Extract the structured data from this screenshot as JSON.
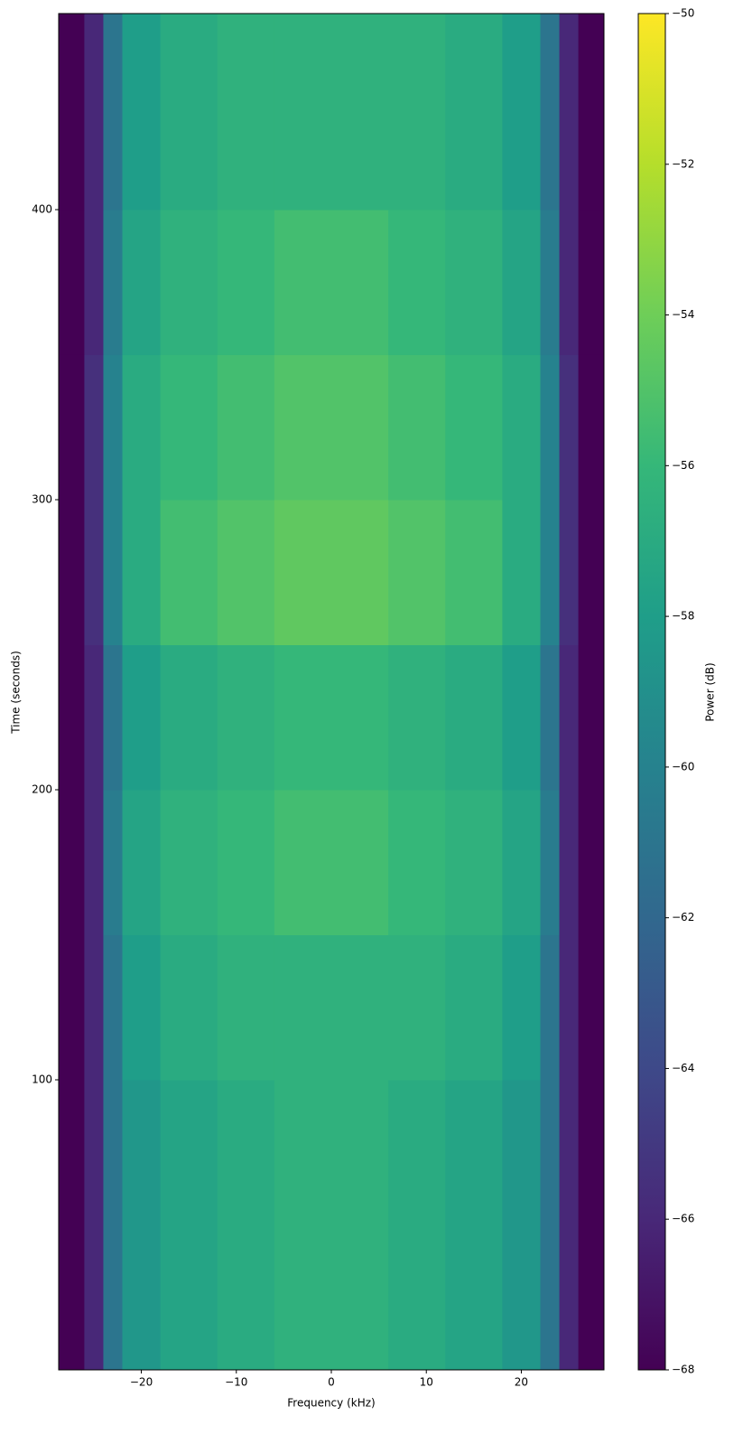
{
  "chart_data": {
    "type": "heatmap",
    "xlabel": "Frequency (kHz)",
    "ylabel": "Time (seconds)",
    "colorbar_label": "Power (dB)",
    "xbins": [
      -28.7,
      -26,
      -24,
      -22,
      -18,
      -12,
      -6,
      0,
      6,
      12,
      18,
      22,
      24,
      26,
      28.7
    ],
    "ybins": [
      0,
      50,
      100,
      150,
      200,
      250,
      300,
      350,
      400,
      467.6
    ],
    "z": [
      [
        -68,
        -66,
        -61,
        -58.5,
        -57.5,
        -57,
        -56.5,
        -56.5,
        -57,
        -57.5,
        -58.5,
        -61,
        -66,
        -68
      ],
      [
        -68,
        -66,
        -61,
        -58.5,
        -57.5,
        -57,
        -56.5,
        -56.5,
        -57,
        -57.5,
        -58.5,
        -61,
        -66,
        -68
      ],
      [
        -68,
        -66,
        -61,
        -58,
        -57,
        -56.5,
        -56.5,
        -56.5,
        -56.5,
        -57,
        -58,
        -61,
        -66,
        -68
      ],
      [
        -68,
        -66,
        -60.5,
        -57.5,
        -56.5,
        -56,
        -55.5,
        -55.5,
        -56,
        -56.5,
        -57.5,
        -60.5,
        -66,
        -68
      ],
      [
        -68,
        -66,
        -61,
        -58,
        -57,
        -56.5,
        -56,
        -56,
        -56.5,
        -57,
        -58,
        -61,
        -66,
        -68
      ],
      [
        -68,
        -65.5,
        -60,
        -57,
        -55.5,
        -55,
        -54.5,
        -54.5,
        -55,
        -55.5,
        -57,
        -60,
        -65.5,
        -68
      ],
      [
        -68,
        -65.5,
        -60,
        -57,
        -56,
        -55.5,
        -55,
        -55,
        -55.5,
        -56,
        -57,
        -60,
        -65.5,
        -68
      ],
      [
        -68,
        -66,
        -60.5,
        -57.5,
        -56.5,
        -56,
        -55.5,
        -55.5,
        -56,
        -56.5,
        -57.5,
        -60.5,
        -66,
        -68
      ],
      [
        -68,
        -66,
        -61,
        -58,
        -57,
        -56.5,
        -56.5,
        -56.5,
        -56.5,
        -57,
        -58,
        -61,
        -66,
        -68
      ]
    ],
    "xlim": [
      -28.7,
      28.7
    ],
    "ylim": [
      0,
      467.6
    ],
    "zlim": [
      -68,
      -50
    ],
    "xticks": [
      {
        "value": -20,
        "label": "−20"
      },
      {
        "value": -10,
        "label": "−10"
      },
      0,
      10,
      20
    ],
    "yticks": [
      100,
      200,
      300,
      400
    ],
    "zticks": [
      {
        "value": -68,
        "label": "−68"
      },
      {
        "value": -66,
        "label": "−66"
      },
      {
        "value": -64,
        "label": "−64"
      },
      {
        "value": -62,
        "label": "−62"
      },
      {
        "value": -60,
        "label": "−60"
      },
      {
        "value": -58,
        "label": "−58"
      },
      {
        "value": -56,
        "label": "−56"
      },
      {
        "value": -54,
        "label": "−54"
      },
      {
        "value": -52,
        "label": "−52"
      },
      {
        "value": -50,
        "label": "−50"
      }
    ],
    "colorscale": [
      "#440154",
      "#482878",
      "#3e4989",
      "#31688e",
      "#26828e",
      "#1f9e89",
      "#35b779",
      "#6ece58",
      "#b5de2b",
      "#fde725"
    ]
  }
}
